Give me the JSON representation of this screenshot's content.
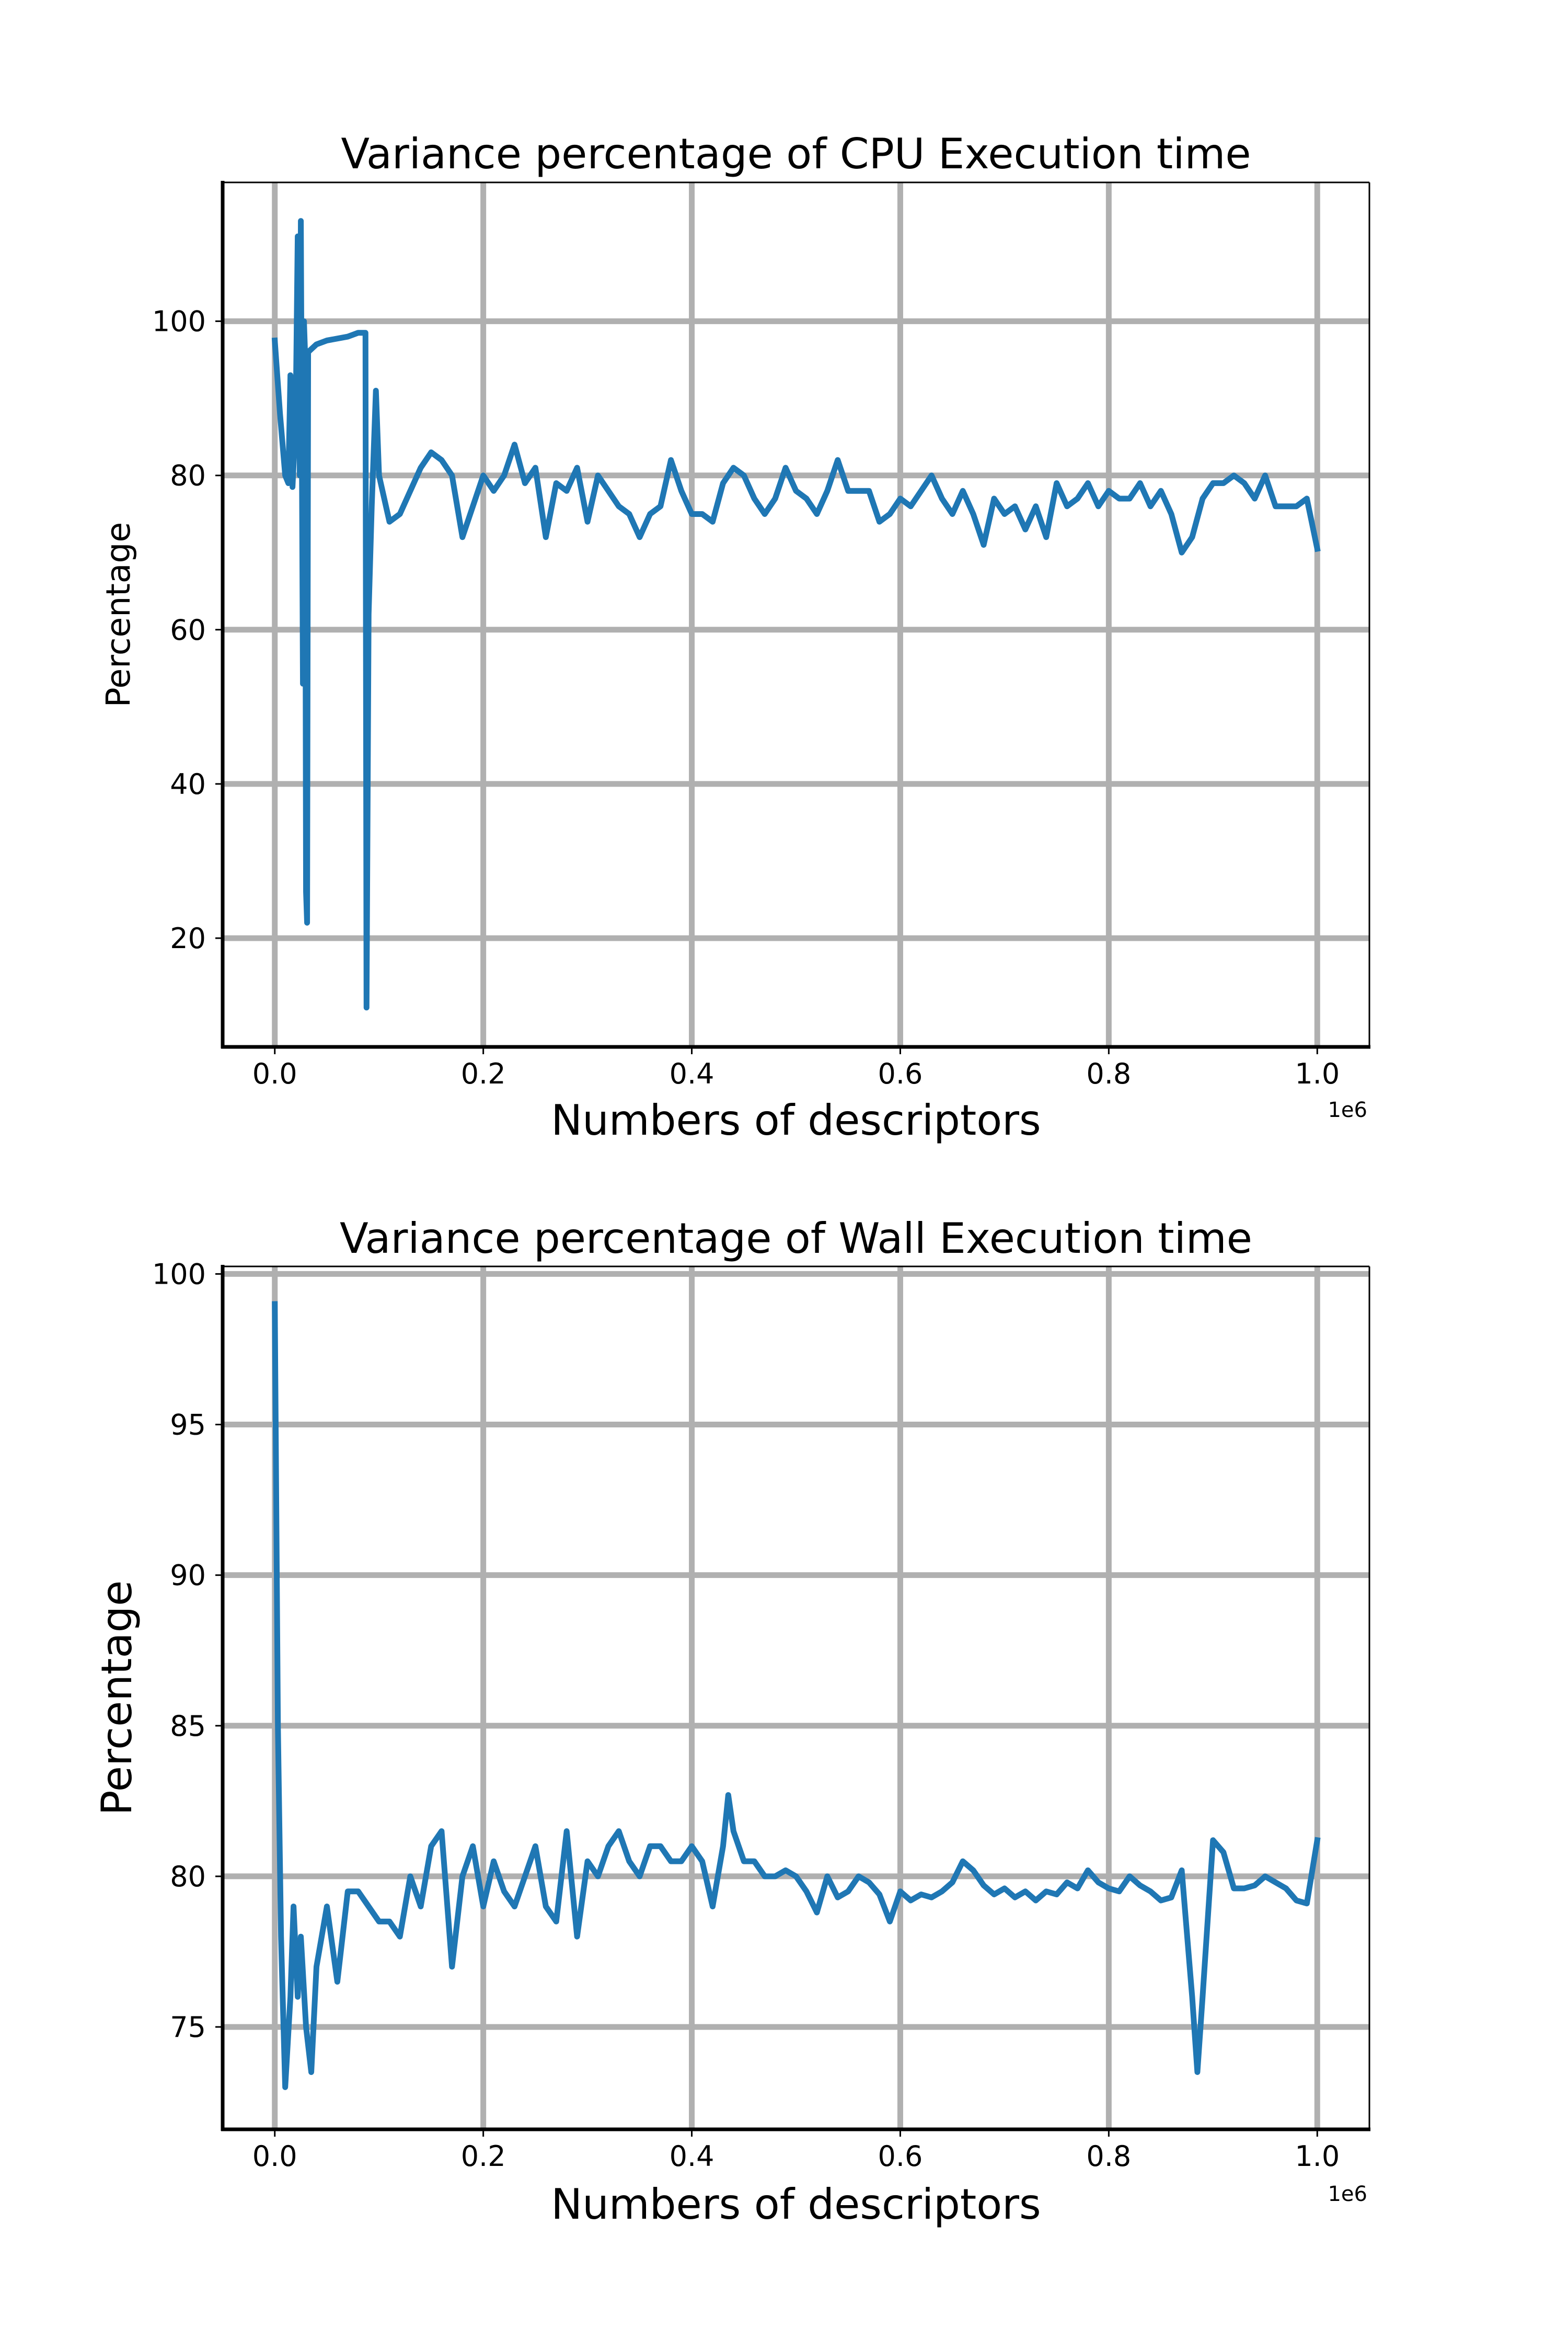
{
  "chart_data": [
    {
      "type": "line",
      "title": "Variance percentage of CPU Execution time",
      "xlabel": "Numbers of descriptors",
      "ylabel": "Percentage",
      "x_offset_label": "1e6",
      "color": "#1f77b4",
      "grid": true,
      "xlim": [
        -0.05,
        1.05
      ],
      "ylim": [
        5.9,
        118
      ],
      "xticks": [
        {
          "value": 0,
          "label": "0.0"
        },
        0.2,
        0.4,
        0.6,
        0.8,
        {
          "value": 1,
          "label": "1.0"
        }
      ],
      "yticks": [
        20,
        40,
        60,
        80,
        100
      ],
      "x": [
        0,
        0.005,
        0.01,
        0.013,
        0.015,
        0.017,
        0.02,
        0.022,
        0.024,
        0.025,
        0.027,
        0.028,
        0.029,
        0.03,
        0.031,
        0.032,
        0.04,
        0.05,
        0.07,
        0.08,
        0.087,
        0.088,
        0.09,
        0.093,
        0.097,
        0.1,
        0.11,
        0.12,
        0.13,
        0.14,
        0.15,
        0.16,
        0.17,
        0.18,
        0.19,
        0.2,
        0.21,
        0.22,
        0.23,
        0.24,
        0.25,
        0.26,
        0.27,
        0.28,
        0.29,
        0.3,
        0.31,
        0.32,
        0.33,
        0.34,
        0.35,
        0.36,
        0.37,
        0.38,
        0.39,
        0.4,
        0.41,
        0.42,
        0.43,
        0.44,
        0.45,
        0.46,
        0.47,
        0.48,
        0.49,
        0.5,
        0.51,
        0.52,
        0.53,
        0.54,
        0.55,
        0.56,
        0.57,
        0.58,
        0.59,
        0.6,
        0.61,
        0.62,
        0.63,
        0.64,
        0.65,
        0.66,
        0.67,
        0.68,
        0.69,
        0.7,
        0.71,
        0.72,
        0.73,
        0.74,
        0.75,
        0.76,
        0.77,
        0.78,
        0.79,
        0.8,
        0.81,
        0.82,
        0.83,
        0.84,
        0.85,
        0.86,
        0.87,
        0.88,
        0.89,
        0.9,
        0.91,
        0.92,
        0.93,
        0.94,
        0.95,
        0.96,
        0.97,
        0.98,
        0.99,
        1.0
      ],
      "values": [
        97.5,
        88,
        80,
        79,
        93,
        78.5,
        87,
        111,
        80,
        113,
        53,
        100,
        96,
        26,
        22,
        96,
        97,
        97.5,
        98,
        98.5,
        98.5,
        11,
        62,
        76,
        91,
        80,
        74,
        75,
        78,
        81,
        83,
        82,
        80,
        72,
        76,
        80,
        78,
        80,
        84,
        79,
        81,
        72,
        79,
        78,
        81,
        74,
        80,
        78,
        76,
        75,
        72,
        75,
        76,
        82,
        78,
        75,
        75,
        74,
        79,
        81,
        80,
        77,
        75,
        77,
        81,
        78,
        77,
        75,
        78,
        82,
        78,
        78,
        78,
        74,
        75,
        77,
        76,
        78,
        80,
        77,
        75,
        78,
        75,
        71,
        77,
        75,
        76,
        73,
        76,
        72,
        79,
        76,
        77,
        79,
        76,
        78,
        77,
        77,
        79,
        76,
        78,
        75,
        70,
        72,
        77,
        79,
        79,
        80,
        79,
        77,
        80,
        76,
        76,
        76,
        77,
        70.5
      ]
    },
    {
      "type": "line",
      "title": "Variance percentage of Wall Execution time",
      "xlabel": "Numbers of descriptors",
      "ylabel": "Percentage",
      "x_offset_label": "1e6",
      "color": "#1f77b4",
      "grid": true,
      "xlim": [
        -0.05,
        1.05
      ],
      "ylim": [
        71.6,
        100.25
      ],
      "xticks": [
        {
          "value": 0,
          "label": "0.0"
        },
        0.2,
        0.4,
        0.6,
        0.8,
        {
          "value": 1,
          "label": "1.0"
        }
      ],
      "yticks": [
        75,
        80,
        85,
        90,
        95,
        100
      ],
      "x": [
        0,
        0.003,
        0.006,
        0.01,
        0.015,
        0.018,
        0.022,
        0.025,
        0.03,
        0.035,
        0.04,
        0.045,
        0.05,
        0.06,
        0.07,
        0.08,
        0.09,
        0.1,
        0.11,
        0.12,
        0.13,
        0.14,
        0.15,
        0.16,
        0.17,
        0.18,
        0.19,
        0.2,
        0.21,
        0.22,
        0.23,
        0.24,
        0.25,
        0.26,
        0.27,
        0.28,
        0.29,
        0.3,
        0.31,
        0.32,
        0.33,
        0.34,
        0.35,
        0.36,
        0.37,
        0.38,
        0.39,
        0.4,
        0.41,
        0.42,
        0.43,
        0.435,
        0.44,
        0.45,
        0.46,
        0.47,
        0.48,
        0.49,
        0.5,
        0.51,
        0.52,
        0.53,
        0.54,
        0.55,
        0.56,
        0.57,
        0.58,
        0.59,
        0.6,
        0.61,
        0.62,
        0.63,
        0.64,
        0.65,
        0.66,
        0.67,
        0.68,
        0.69,
        0.7,
        0.71,
        0.72,
        0.73,
        0.74,
        0.75,
        0.76,
        0.77,
        0.78,
        0.79,
        0.8,
        0.81,
        0.82,
        0.83,
        0.84,
        0.85,
        0.86,
        0.87,
        0.88,
        0.885,
        0.89,
        0.9,
        0.91,
        0.92,
        0.93,
        0.94,
        0.95,
        0.96,
        0.97,
        0.98,
        0.99,
        1.0
      ],
      "values": [
        99,
        85,
        78,
        73,
        76,
        79,
        76,
        78,
        75,
        73.5,
        77,
        78,
        79,
        76.5,
        79.5,
        79.5,
        79,
        78.5,
        78.5,
        78,
        80,
        79,
        81,
        81.5,
        77,
        80,
        81,
        79,
        80.5,
        79.5,
        79,
        80,
        81,
        79,
        78.5,
        81.5,
        78,
        80.5,
        80,
        81,
        81.5,
        80.5,
        80,
        81,
        81,
        80.5,
        80.5,
        81,
        80.5,
        79,
        81,
        82.7,
        81.5,
        80.5,
        80.5,
        80,
        80,
        80.2,
        80,
        79.5,
        78.8,
        80,
        79.3,
        79.5,
        80,
        79.8,
        79.4,
        78.5,
        79.5,
        79.2,
        79.4,
        79.3,
        79.5,
        79.8,
        80.5,
        80.2,
        79.7,
        79.4,
        79.6,
        79.3,
        79.5,
        79.2,
        79.5,
        79.4,
        79.8,
        79.6,
        80.2,
        79.8,
        79.6,
        79.5,
        80,
        79.7,
        79.5,
        79.2,
        79.3,
        80.2,
        76,
        73.5,
        76,
        81.2,
        80.8,
        79.6,
        79.6,
        79.7,
        80,
        79.8,
        79.6,
        79.2,
        79.1,
        81.2
      ]
    }
  ]
}
